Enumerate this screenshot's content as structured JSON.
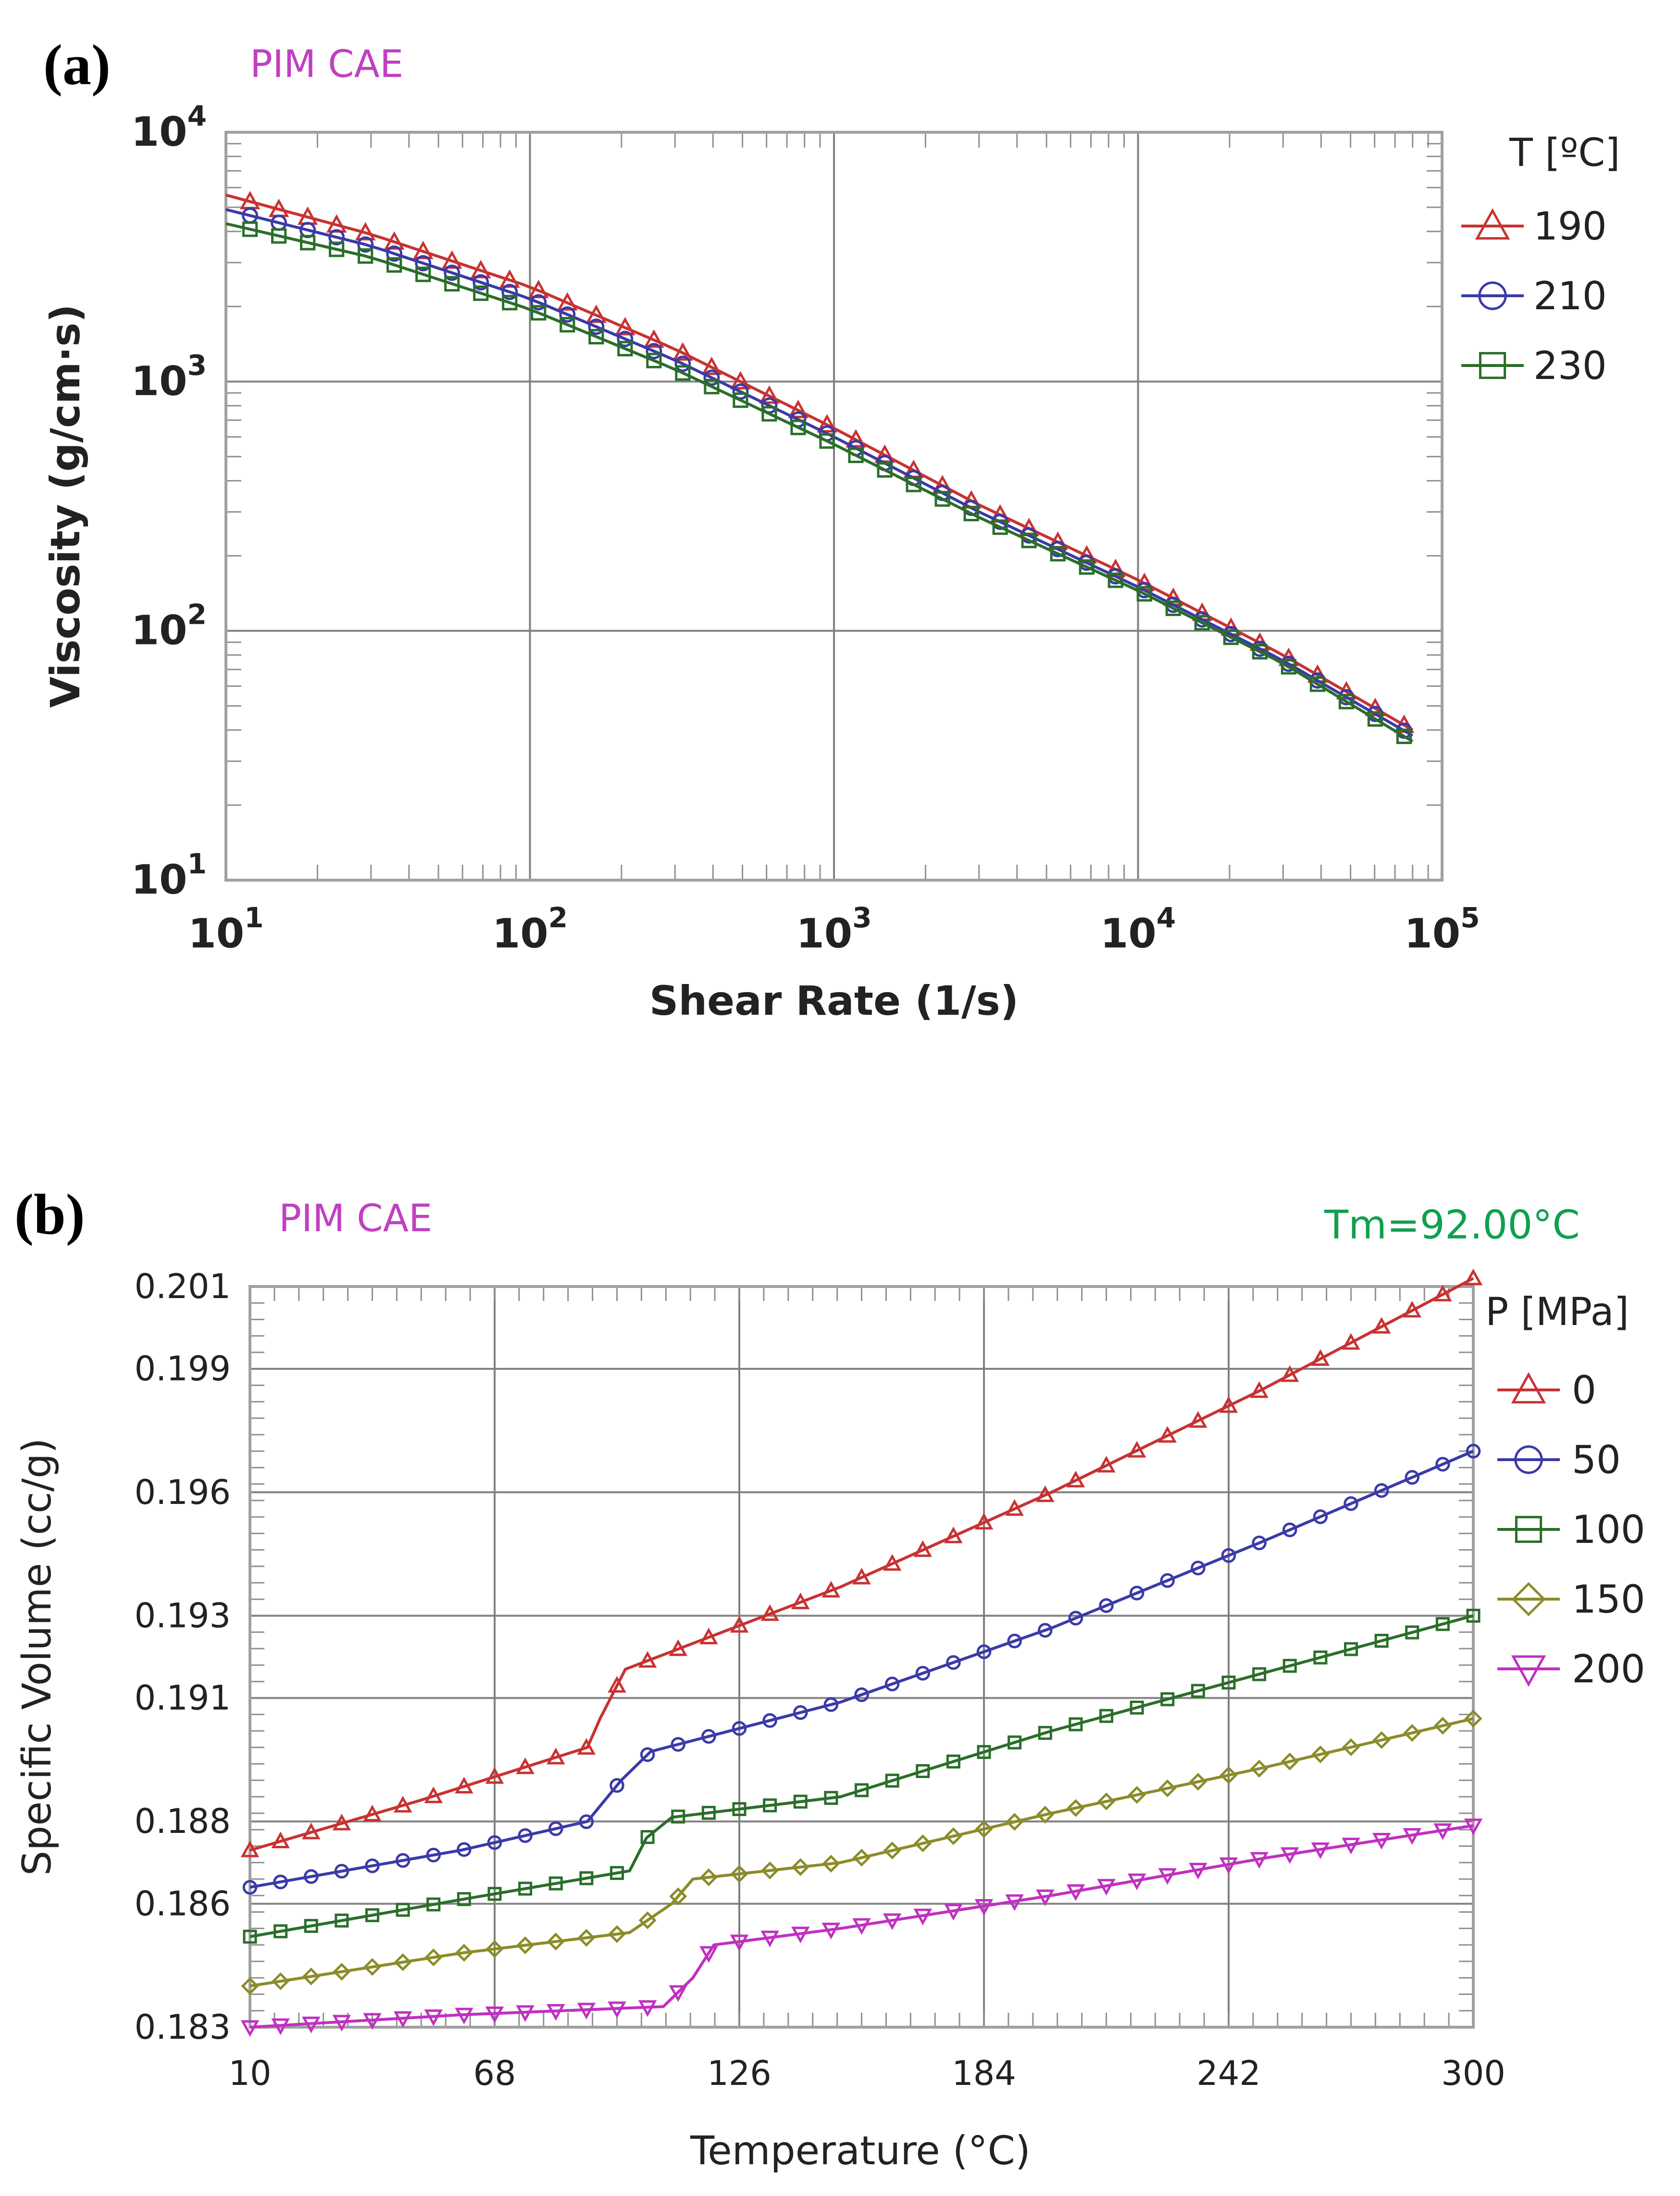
{
  "colors": {
    "watermark": "#c040c0",
    "tm": "#10a050",
    "grid": "#808080",
    "frame": "#a0a0a0"
  },
  "chart_data": [
    {
      "panel": "(a)",
      "type": "line",
      "watermark": "PIM CAE",
      "title": "",
      "xlabel": "Shear Rate (1/s)",
      "ylabel": "Viscosity (g/cm·s)",
      "xscale": "log",
      "yscale": "log",
      "xlim": [
        10,
        100000
      ],
      "ylim": [
        10,
        10000
      ],
      "xticks": [
        {
          "base": "10",
          "exp": "1"
        },
        {
          "base": "10",
          "exp": "2"
        },
        {
          "base": "10",
          "exp": "3"
        },
        {
          "base": "10",
          "exp": "4"
        },
        {
          "base": "10",
          "exp": "5"
        }
      ],
      "yticks": [
        {
          "base": "10",
          "exp": "1"
        },
        {
          "base": "10",
          "exp": "2"
        },
        {
          "base": "10",
          "exp": "3"
        },
        {
          "base": "10",
          "exp": "4"
        }
      ],
      "grid": true,
      "legend_title": "T [ºC]",
      "legend_position": "right",
      "series": [
        {
          "name": "190",
          "color": "#c83232",
          "marker": "triangle",
          "x": [
            10,
            30,
            100,
            300,
            1000,
            3000,
            10000,
            30000,
            80000
          ],
          "y": [
            5600,
            3900,
            2400,
            1350,
            650,
            320,
            160,
            80,
            40
          ]
        },
        {
          "name": "210",
          "color": "#3a3aa8",
          "marker": "circle",
          "x": [
            10,
            30,
            100,
            300,
            1000,
            3000,
            10000,
            30000,
            80000
          ],
          "y": [
            4900,
            3500,
            2150,
            1220,
            600,
            300,
            150,
            76,
            38
          ]
        },
        {
          "name": "230",
          "color": "#2a6e2a",
          "marker": "square",
          "x": [
            10,
            30,
            100,
            300,
            1000,
            3000,
            10000,
            30000,
            80000
          ],
          "y": [
            4300,
            3150,
            1950,
            1120,
            560,
            285,
            145,
            74,
            36
          ]
        }
      ]
    },
    {
      "panel": "(b)",
      "type": "line",
      "watermark": "PIM CAE",
      "annotation": "Tm=92.00°C",
      "title": "",
      "xlabel": "Temperature (°C)",
      "ylabel": "Specific Volume (cc/g)",
      "xlim": [
        10,
        300
      ],
      "ylim": [
        0.183,
        0.201
      ],
      "xticks": [
        "10",
        "68",
        "126",
        "184",
        "242",
        "300"
      ],
      "yticks": [
        "0.183",
        "0.186",
        "0.188",
        "0.191",
        "0.193",
        "0.196",
        "0.199",
        "0.201"
      ],
      "grid": true,
      "legend_title": "P [MPa]",
      "legend_position": "right",
      "series": [
        {
          "name": "0",
          "color": "#c83232",
          "marker": "triangle",
          "x": [
            10,
            50,
            90,
            93,
            99,
            150,
            200,
            250,
            300
          ],
          "y": [
            0.1873,
            0.1885,
            0.1898,
            0.1905,
            0.1917,
            0.1937,
            0.196,
            0.1985,
            0.2012
          ]
        },
        {
          "name": "50",
          "color": "#3a3aa8",
          "marker": "circle",
          "x": [
            10,
            60,
            90,
            98,
            105,
            150,
            200,
            250,
            300
          ],
          "y": [
            0.1864,
            0.1873,
            0.188,
            0.189,
            0.1897,
            0.1909,
            0.1927,
            0.1948,
            0.197
          ]
        },
        {
          "name": "100",
          "color": "#2a6e2a",
          "marker": "square",
          "x": [
            10,
            60,
            100,
            104,
            110,
            150,
            200,
            250,
            300
          ],
          "y": [
            0.1852,
            0.1861,
            0.1868,
            0.1876,
            0.1881,
            0.1886,
            0.1902,
            0.1916,
            0.193
          ]
        },
        {
          "name": "150",
          "color": "#8c8c2a",
          "marker": "diamond",
          "x": [
            10,
            60,
            100,
            110,
            115,
            150,
            200,
            250,
            300
          ],
          "y": [
            0.184,
            0.1848,
            0.1853,
            0.186,
            0.1866,
            0.187,
            0.1882,
            0.1893,
            0.1905
          ]
        },
        {
          "name": "200",
          "color": "#c030c0",
          "marker": "inverted-triangle",
          "x": [
            10,
            60,
            108,
            115,
            120,
            150,
            200,
            250,
            300
          ],
          "y": [
            0.183,
            0.1833,
            0.1835,
            0.1842,
            0.185,
            0.1854,
            0.1862,
            0.1871,
            0.1879
          ]
        }
      ]
    }
  ]
}
